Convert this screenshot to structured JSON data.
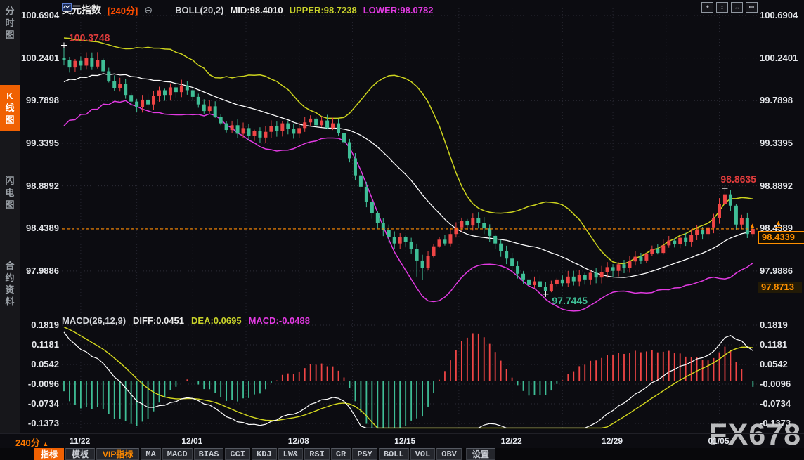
{
  "sidebar": {
    "tabs": [
      {
        "label": "分时图",
        "name": "sidebar-tab-time-share",
        "active": false
      },
      {
        "label": "K线图",
        "name": "sidebar-tab-kline",
        "active": true
      },
      {
        "label": "闪电图",
        "name": "sidebar-tab-lightning",
        "active": false
      },
      {
        "label": "合约资料",
        "name": "sidebar-tab-contract-info",
        "active": false
      }
    ]
  },
  "header": {
    "symbol": "美元指数",
    "period": "[240分]",
    "minus_icon": "⊖",
    "indicator": "BOLL(20,2)",
    "mid_label": "MID:98.4010",
    "upper_label": "UPPER:98.7238",
    "lower_label": "LOWER:98.0782"
  },
  "window_controls": [
    {
      "name": "move-tool-icon",
      "glyph": "+"
    },
    {
      "name": "scale-y-axis-icon",
      "glyph": "↕"
    },
    {
      "name": "scale-x-axis-icon",
      "glyph": "↔"
    },
    {
      "name": "go-to-latest-icon",
      "glyph": "↦"
    }
  ],
  "macd_header": {
    "title": "MACD(26,12,9)",
    "diff_label": "DIFF:0.0451",
    "dea_label": "DEA:0.0695",
    "macd_label": "MACD:-0.0488",
    "flag_icon": "☼"
  },
  "right_axis": {
    "current_badge": "98.4339",
    "secondary_badge": "97.8713",
    "arrow_icon": "▲"
  },
  "dates": {
    "period_label": "240分",
    "period_arrow": "▲"
  },
  "toolbar": [
    {
      "label": "指标",
      "name": "toolbar-button-indicator",
      "style": "active"
    },
    {
      "label": "模板",
      "name": "toolbar-button-template",
      "style": "normal"
    },
    {
      "label": "VIP指标",
      "name": "toolbar-button-vip-indicator",
      "style": "vip"
    },
    {
      "label": "MA",
      "name": "toolbar-button-ma",
      "style": "mono"
    },
    {
      "label": "MACD",
      "name": "toolbar-button-macd",
      "style": "mono"
    },
    {
      "label": "BIAS",
      "name": "toolbar-button-bias",
      "style": "mono"
    },
    {
      "label": "CCI",
      "name": "toolbar-button-cci",
      "style": "mono"
    },
    {
      "label": "KDJ",
      "name": "toolbar-button-kdj",
      "style": "mono"
    },
    {
      "label": "LW&",
      "name": "toolbar-button-lw",
      "style": "mono"
    },
    {
      "label": "RSI",
      "name": "toolbar-button-rsi",
      "style": "mono"
    },
    {
      "label": "CR",
      "name": "toolbar-button-cr",
      "style": "mono"
    },
    {
      "label": "PSY",
      "name": "toolbar-button-psy",
      "style": "mono"
    },
    {
      "label": "BOLL",
      "name": "toolbar-button-boll",
      "style": "mono"
    },
    {
      "label": "VOL",
      "name": "toolbar-button-vol",
      "style": "mono"
    },
    {
      "label": "OBV",
      "name": "toolbar-button-obv",
      "style": "mono"
    },
    {
      "label": "设置",
      "name": "toolbar-button-settings",
      "style": "settings"
    }
  ],
  "watermark": "FX678",
  "colors": {
    "up": "#ef4545",
    "down": "#3fbe96",
    "boll_upper": "#cdd41e",
    "boll_mid": "#ffffff",
    "boll_lower": "#e23ae2",
    "macd_diff": "#ffffff",
    "macd_dea": "#d4d81e",
    "accent": "#f06102",
    "price_line": "#ff8a00",
    "annotation_red": "#e03c3c",
    "annotation_green": "#3fbe96",
    "badge_orange": "#ff9000",
    "grid": "#2d2d37",
    "grid_vertical": "#262630"
  },
  "chart_data": {
    "type": "candlestick+macd",
    "title": "美元指数 240分 K线 BOLL(20,2) MACD(26,12,9)",
    "price_gridlines": [
      100.6904,
      100.2401,
      99.7898,
      99.3395,
      98.8892,
      98.4389,
      97.9886
    ],
    "macd_gridlines": [
      0.1819,
      0.1181,
      0.0542,
      -0.0096,
      -0.0734,
      -0.1373
    ],
    "ylim": [
      97.74,
      100.69
    ],
    "current_price": 98.4339,
    "first_open": 100.24,
    "closes": [
      100.22,
      100.14,
      100.21,
      100.16,
      100.24,
      100.15,
      100.22,
      100.1,
      100.0,
      99.92,
      99.97,
      99.85,
      99.78,
      99.72,
      99.8,
      99.75,
      99.84,
      99.9,
      99.85,
      99.93,
      99.88,
      99.95,
      99.9,
      99.83,
      99.75,
      99.68,
      99.73,
      99.62,
      99.55,
      99.48,
      99.53,
      99.44,
      99.5,
      99.42,
      99.47,
      99.4,
      99.46,
      99.52,
      99.47,
      99.55,
      99.49,
      99.44,
      99.5,
      99.56,
      99.6,
      99.53,
      99.58,
      99.5,
      99.55,
      99.45,
      99.35,
      99.18,
      99.0,
      98.88,
      98.72,
      98.6,
      98.5,
      98.42,
      98.35,
      98.28,
      98.35,
      98.3,
      98.22,
      98.1,
      98.02,
      98.15,
      98.25,
      98.32,
      98.28,
      98.38,
      98.45,
      98.52,
      98.47,
      98.55,
      98.5,
      98.44,
      98.36,
      98.28,
      98.2,
      98.12,
      98.04,
      97.96,
      97.9,
      97.84,
      97.88,
      97.82,
      97.78,
      97.85,
      97.9,
      97.86,
      97.93,
      97.88,
      97.95,
      97.9,
      97.97,
      97.92,
      97.98,
      98.03,
      97.99,
      98.06,
      98.02,
      98.09,
      98.14,
      98.1,
      98.17,
      98.22,
      98.18,
      98.26,
      98.31,
      98.27,
      98.34,
      98.3,
      98.37,
      98.42,
      98.38,
      98.45,
      98.55,
      98.7,
      98.8,
      98.68,
      98.48,
      98.55,
      98.38,
      98.4339
    ],
    "prehistory": [
      99.6,
      100.3,
      99.65,
      100.28,
      99.7,
      100.25,
      99.72,
      100.22,
      99.75,
      100.2,
      99.78,
      100.18,
      99.8,
      100.15,
      99.85,
      100.12,
      99.9,
      100.1,
      100.0
    ],
    "wick_overrides": {
      "0": {
        "h": 100.3748
      },
      "6": {
        "h": 100.302
      },
      "63": {
        "l": 97.93
      },
      "64": {
        "l": 97.895
      },
      "86": {
        "l": 97.7445
      },
      "118": {
        "h": 98.8635
      }
    },
    "date_ticks": [
      {
        "label": "11/22",
        "bar": 3
      },
      {
        "label": "12/01",
        "bar": 23
      },
      {
        "label": "12/08",
        "bar": 42
      },
      {
        "label": "12/15",
        "bar": 61
      },
      {
        "label": "12/22",
        "bar": 80
      },
      {
        "label": "12/29",
        "bar": 98
      },
      {
        "label": "01/05",
        "bar": 117
      }
    ],
    "annotations": {
      "open_high": {
        "text": "100.3748",
        "bar": 0,
        "price": 100.3748,
        "color_key": "annotation_red",
        "anchor": "start"
      },
      "recent_high": {
        "text": "98.8635",
        "bar": 118,
        "price": 98.8635,
        "color_key": "annotation_red",
        "anchor": "end"
      },
      "low": {
        "text": "97.7445",
        "bar": 86,
        "price": 97.7445,
        "color_key": "annotation_green",
        "anchor": "start"
      }
    },
    "boll": {
      "period": 20,
      "k": 2,
      "mid": 98.401,
      "upper": 98.7238,
      "lower": 98.0782
    },
    "macd": {
      "fast": 12,
      "slow": 26,
      "signal": 9,
      "diff": 0.0451,
      "dea": 0.0695,
      "hist": -0.0488
    }
  }
}
